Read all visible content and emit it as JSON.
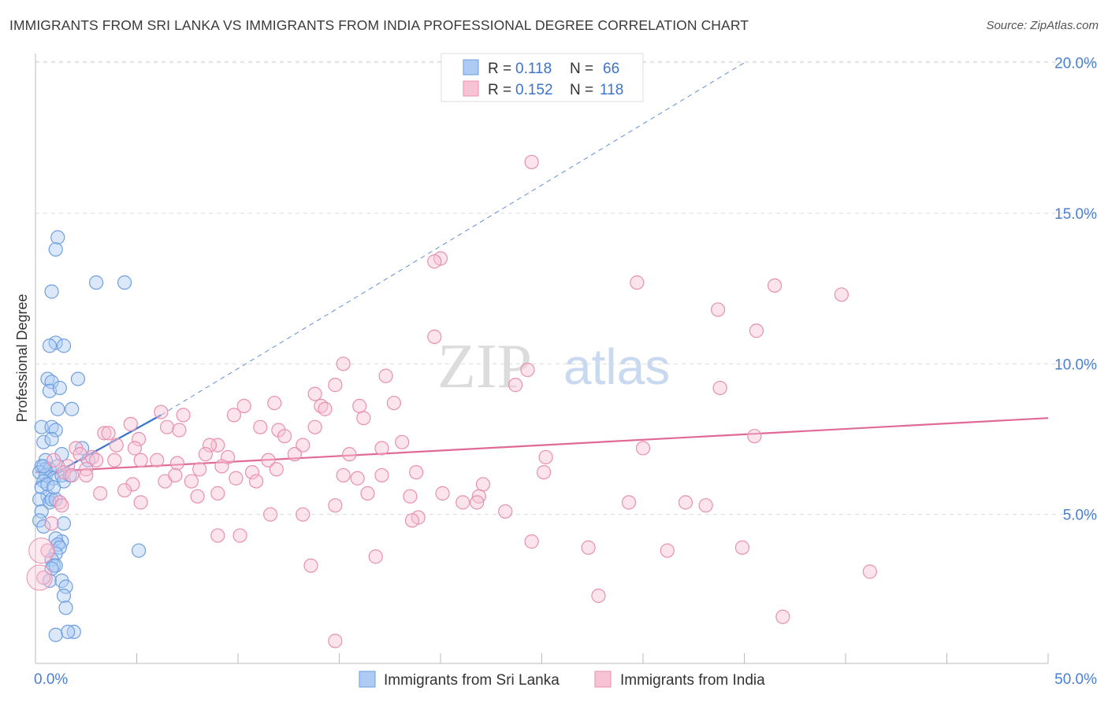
{
  "title": "IMMIGRANTS FROM SRI LANKA VS IMMIGRANTS FROM INDIA PROFESSIONAL DEGREE CORRELATION CHART",
  "source": "Source: ZipAtlas.com",
  "watermark": {
    "zip": "ZIP",
    "atlas": "atlas"
  },
  "colors": {
    "blue": "#6f9fe0",
    "blue_fill": "#aecbf3",
    "pink": "#e98fb0",
    "pink_fill": "#f6c3d5",
    "blue_line": "#3a73d0",
    "pink_line": "#e06a96",
    "tick": "#4a7fd0"
  },
  "chart_data": {
    "type": "scatter",
    "title": "IMMIGRANTS FROM SRI LANKA VS IMMIGRANTS FROM INDIA PROFESSIONAL DEGREE CORRELATION CHART",
    "xlabel": "",
    "ylabel": "Professional Degree",
    "xlim": [
      0,
      50
    ],
    "ylim": [
      0,
      20.5
    ],
    "x_tick_labels": {
      "min": "0.0%",
      "max": "50.0%"
    },
    "y_ticks": [
      5,
      10,
      15,
      20
    ],
    "y_tick_labels": [
      "5.0%",
      "10.0%",
      "15.0%",
      "20.0%"
    ],
    "grid": true,
    "legend": {
      "placement": "top-center",
      "entries": [
        {
          "r_label": "R =",
          "r_value": "0.118",
          "n_label": "N =",
          "n_value": "66"
        },
        {
          "r_label": "R =",
          "r_value": "0.152",
          "n_label": "N =",
          "n_value": "118"
        }
      ]
    },
    "series": [
      {
        "name": "Immigrants from Sri Lanka",
        "color": "#6f9fe0",
        "trend": {
          "x": [
            0,
            6.2
          ],
          "y": [
            6.0,
            8.3
          ]
        },
        "trend_dashed": {
          "x": [
            6.2,
            35.0
          ],
          "y": [
            8.3,
            20.0
          ]
        },
        "points": [
          [
            1.1,
            14.2
          ],
          [
            1.0,
            13.8
          ],
          [
            3.0,
            12.7
          ],
          [
            4.4,
            12.7
          ],
          [
            0.8,
            12.4
          ],
          [
            1.0,
            10.7
          ],
          [
            0.7,
            10.6
          ],
          [
            1.4,
            10.6
          ],
          [
            0.6,
            9.5
          ],
          [
            0.8,
            9.4
          ],
          [
            2.1,
            9.5
          ],
          [
            0.7,
            9.1
          ],
          [
            1.2,
            9.2
          ],
          [
            1.8,
            8.5
          ],
          [
            1.1,
            8.5
          ],
          [
            0.3,
            7.9
          ],
          [
            0.8,
            7.9
          ],
          [
            1.0,
            7.8
          ],
          [
            0.4,
            7.4
          ],
          [
            0.8,
            7.5
          ],
          [
            2.3,
            7.2
          ],
          [
            0.5,
            6.8
          ],
          [
            1.3,
            7.0
          ],
          [
            0.3,
            6.6
          ],
          [
            0.5,
            6.5
          ],
          [
            0.7,
            6.5
          ],
          [
            0.2,
            6.4
          ],
          [
            0.5,
            6.3
          ],
          [
            0.9,
            6.2
          ],
          [
            1.3,
            6.3
          ],
          [
            0.4,
            6.1
          ],
          [
            1.4,
            6.1
          ],
          [
            0.3,
            5.9
          ],
          [
            2.6,
            6.8
          ],
          [
            0.6,
            5.6
          ],
          [
            0.2,
            5.5
          ],
          [
            0.7,
            5.4
          ],
          [
            0.8,
            5.5
          ],
          [
            1.0,
            5.5
          ],
          [
            0.3,
            5.1
          ],
          [
            0.2,
            4.8
          ],
          [
            1.4,
            4.7
          ],
          [
            0.4,
            4.6
          ],
          [
            1.3,
            4.1
          ],
          [
            1.0,
            4.2
          ],
          [
            1.1,
            4.0
          ],
          [
            1.2,
            3.9
          ],
          [
            1.0,
            3.7
          ],
          [
            0.8,
            3.5
          ],
          [
            0.9,
            3.3
          ],
          [
            1.0,
            3.3
          ],
          [
            0.8,
            3.2
          ],
          [
            5.1,
            3.8
          ],
          [
            0.7,
            2.8
          ],
          [
            1.3,
            2.8
          ],
          [
            1.5,
            2.6
          ],
          [
            1.4,
            2.3
          ],
          [
            1.5,
            1.9
          ],
          [
            1.9,
            1.1
          ],
          [
            1.6,
            1.1
          ],
          [
            1.0,
            1.0
          ],
          [
            0.4,
            6.6
          ],
          [
            0.6,
            6.0
          ],
          [
            1.1,
            6.6
          ],
          [
            1.7,
            6.3
          ],
          [
            0.9,
            5.9
          ]
        ]
      },
      {
        "name": "Immigrants from India",
        "color": "#e98fb0",
        "trend": {
          "x": [
            0,
            50
          ],
          "y": [
            6.4,
            8.2
          ]
        },
        "points": [
          [
            24.5,
            16.7
          ],
          [
            20.0,
            13.5
          ],
          [
            19.7,
            13.4
          ],
          [
            29.7,
            12.7
          ],
          [
            36.5,
            12.6
          ],
          [
            39.8,
            12.3
          ],
          [
            33.7,
            11.8
          ],
          [
            35.6,
            11.1
          ],
          [
            19.7,
            10.9
          ],
          [
            15.2,
            10.0
          ],
          [
            24.3,
            9.8
          ],
          [
            17.3,
            9.6
          ],
          [
            23.7,
            9.3
          ],
          [
            14.8,
            9.3
          ],
          [
            33.8,
            9.2
          ],
          [
            13.8,
            9.0
          ],
          [
            11.8,
            8.7
          ],
          [
            14.1,
            8.6
          ],
          [
            17.7,
            8.7
          ],
          [
            14.3,
            8.5
          ],
          [
            16.0,
            8.6
          ],
          [
            10.3,
            8.6
          ],
          [
            6.2,
            8.4
          ],
          [
            7.3,
            8.3
          ],
          [
            9.8,
            8.3
          ],
          [
            16.2,
            8.2
          ],
          [
            4.7,
            8.0
          ],
          [
            6.5,
            7.9
          ],
          [
            11.1,
            7.9
          ],
          [
            13.8,
            7.9
          ],
          [
            7.1,
            7.8
          ],
          [
            12.0,
            7.8
          ],
          [
            3.4,
            7.7
          ],
          [
            3.6,
            7.7
          ],
          [
            12.3,
            7.6
          ],
          [
            5.1,
            7.5
          ],
          [
            35.5,
            7.6
          ],
          [
            4.0,
            7.3
          ],
          [
            18.1,
            7.4
          ],
          [
            9.0,
            7.3
          ],
          [
            8.6,
            7.3
          ],
          [
            13.2,
            7.3
          ],
          [
            4.9,
            7.2
          ],
          [
            2.0,
            7.2
          ],
          [
            17.1,
            7.2
          ],
          [
            30.0,
            7.2
          ],
          [
            15.5,
            7.0
          ],
          [
            8.4,
            7.0
          ],
          [
            12.8,
            7.0
          ],
          [
            2.8,
            6.9
          ],
          [
            25.2,
            6.9
          ],
          [
            11.5,
            6.8
          ],
          [
            9.5,
            6.9
          ],
          [
            3.9,
            6.8
          ],
          [
            3.0,
            6.8
          ],
          [
            6.0,
            6.8
          ],
          [
            5.2,
            6.8
          ],
          [
            7.0,
            6.7
          ],
          [
            1.6,
            6.6
          ],
          [
            9.2,
            6.6
          ],
          [
            1.4,
            6.4
          ],
          [
            2.5,
            6.5
          ],
          [
            8.1,
            6.5
          ],
          [
            11.9,
            6.5
          ],
          [
            1.8,
            6.3
          ],
          [
            2.5,
            6.3
          ],
          [
            15.2,
            6.3
          ],
          [
            10.7,
            6.4
          ],
          [
            18.8,
            6.4
          ],
          [
            25.1,
            6.4
          ],
          [
            17.1,
            6.3
          ],
          [
            9.9,
            6.2
          ],
          [
            15.9,
            6.2
          ],
          [
            10.9,
            6.1
          ],
          [
            6.4,
            6.1
          ],
          [
            7.7,
            6.1
          ],
          [
            4.8,
            6.0
          ],
          [
            22.1,
            6.0
          ],
          [
            3.2,
            5.7
          ],
          [
            4.4,
            5.8
          ],
          [
            9.0,
            5.7
          ],
          [
            8.0,
            5.6
          ],
          [
            16.4,
            5.7
          ],
          [
            18.5,
            5.6
          ],
          [
            20.1,
            5.7
          ],
          [
            21.9,
            5.6
          ],
          [
            21.1,
            5.4
          ],
          [
            21.8,
            5.4
          ],
          [
            29.3,
            5.4
          ],
          [
            32.1,
            5.4
          ],
          [
            33.1,
            5.3
          ],
          [
            5.2,
            5.4
          ],
          [
            1.2,
            5.4
          ],
          [
            1.3,
            5.3
          ],
          [
            14.8,
            5.3
          ],
          [
            23.2,
            5.1
          ],
          [
            11.6,
            5.0
          ],
          [
            13.2,
            5.0
          ],
          [
            18.9,
            4.9
          ],
          [
            18.6,
            4.8
          ],
          [
            0.8,
            4.7
          ],
          [
            9.0,
            4.3
          ],
          [
            10.1,
            4.3
          ],
          [
            24.5,
            4.1
          ],
          [
            27.3,
            3.9
          ],
          [
            34.9,
            3.9
          ],
          [
            31.2,
            3.8
          ],
          [
            16.8,
            3.6
          ],
          [
            13.6,
            3.3
          ],
          [
            41.2,
            3.1
          ],
          [
            0.6,
            3.8
          ],
          [
            0.4,
            2.9
          ],
          [
            27.8,
            2.3
          ],
          [
            36.9,
            1.6
          ],
          [
            14.8,
            0.8
          ],
          [
            2.2,
            7.0
          ],
          [
            0.9,
            6.8
          ],
          [
            6.9,
            6.3
          ]
        ]
      }
    ]
  },
  "bottom_legend": [
    {
      "label": "Immigrants from Sri Lanka"
    },
    {
      "label": "Immigrants from India"
    }
  ]
}
